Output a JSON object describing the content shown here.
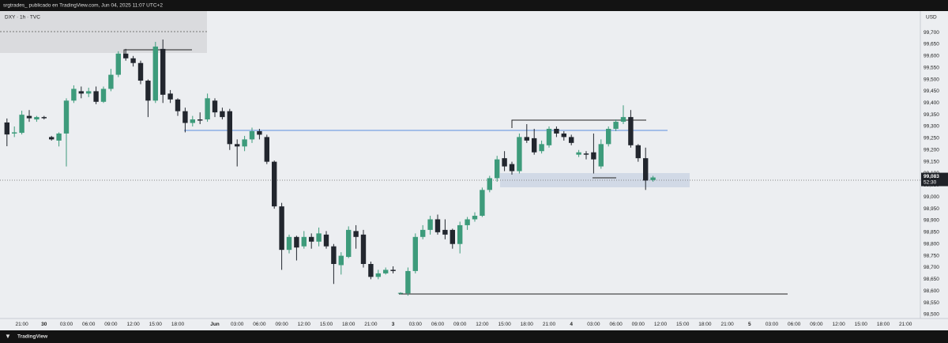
{
  "header": "srgtrades_ publicado en TradingView.com, Jun 04, 2025 11:07 UTC+2",
  "footer": "TradingView",
  "chart_data": {
    "type": "candlestick",
    "symbol": "DXY · 1h · TVC",
    "currency": "USD",
    "countdown": "52:30",
    "last_price": {
      "value": 99083,
      "label": "99,083"
    },
    "up_color": "#3d9b7b",
    "down_color": "#22262e",
    "categories": [
      null,
      null,
      "21:00",
      null,
      null,
      "30",
      null,
      null,
      "03:00",
      null,
      null,
      "06:00",
      null,
      null,
      "09:00",
      null,
      null,
      "12:00",
      null,
      null,
      "15:00",
      null,
      null,
      "18:00",
      null,
      null,
      null,
      null,
      "Jun",
      null,
      null,
      "03:00",
      null,
      null,
      "06:00",
      null,
      null,
      "09:00",
      null,
      null,
      "12:00",
      null,
      null,
      "15:00",
      null,
      null,
      "18:00",
      null,
      null,
      "21:00",
      null,
      null,
      "3",
      null,
      null,
      "03:00",
      null,
      null,
      "06:00",
      null,
      null,
      "09:00",
      null,
      null,
      "12:00",
      null,
      null,
      "15:00",
      null,
      null,
      "18:00",
      null,
      null,
      "21:00",
      null,
      null,
      "4",
      null,
      null,
      "03:00",
      null,
      null,
      "06:00",
      null,
      null,
      "09:00",
      null,
      null,
      "12:00",
      null,
      null,
      "15:00",
      null,
      null,
      "18:00",
      null,
      null,
      "21:00",
      null,
      null,
      "5",
      null,
      null,
      "03:00",
      null,
      null,
      "06:00",
      null,
      null,
      "09:00",
      null,
      null,
      "12:00",
      null,
      null,
      "15:00",
      null,
      null,
      "18:00",
      null,
      null,
      "21:00",
      null
    ],
    "open": [
      99317,
      99270,
      99273,
      99345,
      99330,
      99340,
      99255,
      99240,
      99270,
      99410,
      99450,
      99440,
      99450,
      99405,
      99460,
      99520,
      99610,
      99590,
      99570,
      99495,
      99410,
      99630,
      99440,
      99415,
      99365,
      99315,
      99330,
      99330,
      99410,
      99365,
      99365,
      99225,
      99215,
      99245,
      99280,
      99255,
      99150,
      98960,
      98775,
      98830,
      98790,
      98830,
      98810,
      98840,
      98790,
      98710,
      98745,
      98855,
      98840,
      98715,
      98660,
      98675,
      98690,
      98590,
      98590,
      98685,
      98830,
      98860,
      98905,
      98860,
      98860,
      98800,
      98880,
      98905,
      98920,
      99030,
      99080,
      99165,
      99140,
      99110,
      99255,
      99250,
      99195,
      99220,
      99290,
      99270,
      99255,
      99180,
      99185,
      99190,
      99130,
      99225,
      99290,
      99320,
      99340,
      99220,
      99165,
      99072,
      null,
      null,
      null,
      null,
      null,
      null,
      null,
      null,
      null,
      null,
      null,
      null,
      null,
      null,
      null,
      null,
      null,
      null,
      null,
      null,
      null,
      null,
      null,
      null,
      null,
      null,
      null,
      null,
      null,
      null,
      null,
      null,
      null,
      null,
      null
    ],
    "high": [
      99334,
      99300,
      99367,
      99370,
      99345,
      99345,
      99260,
      99275,
      99420,
      99475,
      99470,
      99465,
      99470,
      99470,
      99545,
      99620,
      99630,
      99600,
      99580,
      99500,
      99660,
      99670,
      99455,
      99420,
      99380,
      99345,
      99360,
      99440,
      99420,
      99380,
      99375,
      99245,
      99260,
      99295,
      99290,
      99265,
      99155,
      98975,
      98840,
      98835,
      98855,
      98845,
      98870,
      98855,
      98800,
      98765,
      98875,
      98880,
      98860,
      98725,
      98690,
      98700,
      98705,
      98595,
      98700,
      98845,
      98880,
      98920,
      98925,
      98905,
      98865,
      98895,
      98915,
      98935,
      99040,
      99090,
      99175,
      99195,
      99150,
      99270,
      99310,
      99290,
      99240,
      99300,
      99300,
      99280,
      99265,
      99200,
      99195,
      99270,
      99245,
      99300,
      99330,
      99390,
      99370,
      99225,
      99210,
      99090,
      null,
      null,
      null,
      null,
      null,
      null,
      null,
      null,
      null,
      null,
      null,
      null,
      null,
      null,
      null,
      null,
      null,
      null,
      null,
      null,
      null,
      null,
      null,
      null,
      null,
      null,
      null,
      null,
      null,
      null,
      null,
      null,
      null,
      null,
      null
    ],
    "low": [
      99216,
      99255,
      99266,
      99320,
      99320,
      99330,
      99240,
      99215,
      99130,
      99400,
      99420,
      99425,
      99395,
      99400,
      99450,
      99510,
      99580,
      99555,
      99480,
      99340,
      99400,
      99400,
      99400,
      99345,
      99275,
      99300,
      99310,
      99320,
      99340,
      99330,
      99200,
      99130,
      99195,
      99230,
      99245,
      99140,
      98950,
      98690,
      98760,
      98730,
      98780,
      98780,
      98790,
      98780,
      98630,
      98670,
      98740,
      98780,
      98700,
      98650,
      98650,
      98670,
      98675,
      98585,
      98580,
      98675,
      98820,
      98840,
      98840,
      98820,
      98780,
      98760,
      98860,
      98895,
      98915,
      99020,
      99065,
      99110,
      99095,
      99100,
      99230,
      99180,
      99185,
      99210,
      99255,
      99240,
      99220,
      99170,
      99160,
      99100,
      99120,
      99215,
      99280,
      99310,
      99210,
      99150,
      99030,
      99065,
      null,
      null,
      null,
      null,
      null,
      null,
      null,
      null,
      null,
      null,
      null,
      null,
      null,
      null,
      null,
      null,
      null,
      null,
      null,
      null,
      null,
      null,
      null,
      null,
      null,
      null,
      null,
      null,
      null,
      null,
      null,
      null,
      null,
      null,
      null
    ],
    "close": [
      99266,
      99275,
      99350,
      99335,
      99340,
      99335,
      99245,
      99270,
      99410,
      99460,
      99440,
      99450,
      99405,
      99460,
      99520,
      99610,
      99590,
      99570,
      99495,
      99410,
      99640,
      99435,
      99415,
      99365,
      99315,
      99330,
      99325,
      99420,
      99360,
      99340,
      99225,
      99215,
      99245,
      99280,
      99265,
      99150,
      98960,
      98775,
      98830,
      98785,
      98830,
      98810,
      98845,
      98790,
      98715,
      98750,
      98860,
      98830,
      98715,
      98660,
      98675,
      98690,
      98685,
      98592,
      98685,
      98830,
      98860,
      98905,
      98850,
      98840,
      98800,
      98880,
      98905,
      98920,
      99030,
      99080,
      99160,
      99130,
      99110,
      99255,
      99240,
      99190,
      99225,
      99290,
      99270,
      99255,
      99230,
      99190,
      99180,
      99160,
      99225,
      99290,
      99320,
      99340,
      99220,
      99165,
      99070,
      99083,
      null,
      null,
      null,
      null,
      null,
      null,
      null,
      null,
      null,
      null,
      null,
      null,
      null,
      null,
      null,
      null,
      null,
      null,
      null,
      null,
      null,
      null,
      null,
      null,
      null,
      null,
      null,
      null,
      null,
      null,
      null,
      null,
      null,
      null,
      null
    ],
    "ylim": [
      98483,
      99791
    ],
    "yticks": [
      {
        "value": 98500,
        "label": "98,500"
      },
      {
        "value": 98550,
        "label": "98,550"
      },
      {
        "value": 98600,
        "label": "98,600"
      },
      {
        "value": 98650,
        "label": "98,650"
      },
      {
        "value": 98700,
        "label": "98,700"
      },
      {
        "value": 98750,
        "label": "98,750"
      },
      {
        "value": 98800,
        "label": "98,800"
      },
      {
        "value": 98850,
        "label": "98,850"
      },
      {
        "value": 98900,
        "label": "98,900"
      },
      {
        "value": 98950,
        "label": "98,950"
      },
      {
        "value": 99000,
        "label": "99,000"
      },
      {
        "value": 99050,
        "label": "99,050"
      },
      {
        "value": 99100,
        "label": "99,100"
      },
      {
        "value": 99150,
        "label": "99,150"
      },
      {
        "value": 99200,
        "label": "99,200"
      },
      {
        "value": 99250,
        "label": "99,250"
      },
      {
        "value": 99300,
        "label": "99,300"
      },
      {
        "value": 99350,
        "label": "99,350"
      },
      {
        "value": 99400,
        "label": "99,400"
      },
      {
        "value": 99450,
        "label": "99,450"
      },
      {
        "value": 99500,
        "label": "99,500"
      },
      {
        "value": 99550,
        "label": "99,550"
      },
      {
        "value": 99600,
        "label": "99,600"
      },
      {
        "value": 99650,
        "label": "99,650"
      },
      {
        "value": 99700,
        "label": "99,700"
      }
    ]
  }
}
